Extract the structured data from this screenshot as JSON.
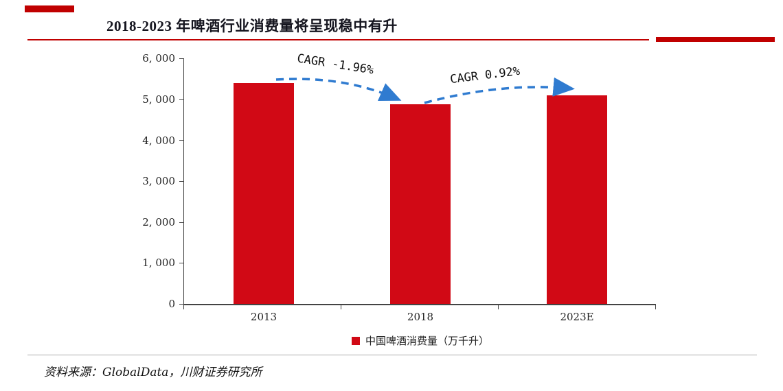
{
  "header": {
    "title": "2018-2023 年啤酒行业消费量将呈现稳中有升"
  },
  "chart_data": {
    "type": "bar",
    "title": "2018-2023 年啤酒行业消费量将呈现稳中有升",
    "categories": [
      "2013",
      "2018",
      "2023E"
    ],
    "values": [
      5400,
      4880,
      5100
    ],
    "xlabel": "",
    "ylabel": "",
    "ylim": [
      0,
      6000
    ],
    "ytick_labels": [
      "6, 000",
      "5, 000",
      "4, 000",
      "3, 000",
      "2, 000",
      "1, 000",
      "0"
    ],
    "grid": false,
    "legend_position": "bottom",
    "legend": [
      {
        "label": "中国啤酒消费量（万千升）",
        "color": "#d10915"
      }
    ],
    "annotations": [
      {
        "text": "CAGR -1.96%"
      },
      {
        "text": "CAGR 0.92%"
      }
    ],
    "bar_color": "#d10915",
    "arrow_color": "#2f7bd0",
    "accent_color": "#c00000"
  },
  "footer": {
    "source": "资料来源：GlobalData，川财证券研究所"
  }
}
